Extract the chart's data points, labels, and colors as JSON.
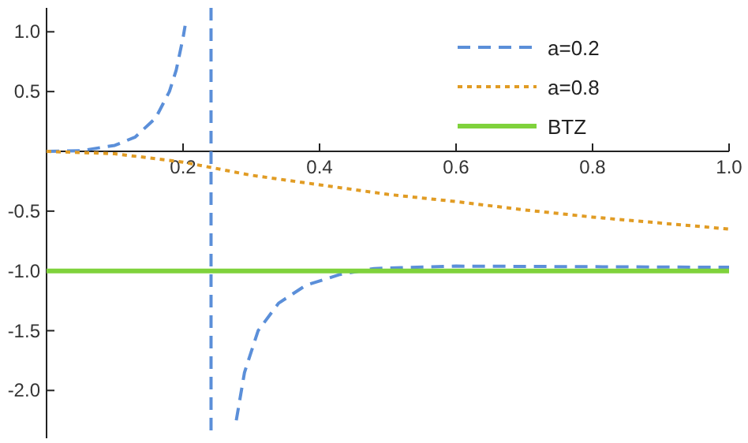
{
  "chart_data": {
    "type": "line",
    "xlim": [
      0,
      1.0
    ],
    "ylim": [
      -2.4,
      1.2
    ],
    "xticks": [
      {
        "value": 0.2,
        "label": "0.2"
      },
      {
        "value": 0.4,
        "label": "0.4"
      },
      {
        "value": 0.6,
        "label": "0.6"
      },
      {
        "value": 0.8,
        "label": "0.8"
      },
      {
        "value": 1.0,
        "label": "1.0"
      }
    ],
    "yticks": [
      {
        "value": 1.0,
        "label": "1.0"
      },
      {
        "value": 0.5,
        "label": "0.5"
      },
      {
        "value": -0.5,
        "label": "-0.5"
      },
      {
        "value": -1.0,
        "label": "-1.0"
      },
      {
        "value": -1.5,
        "label": "-1.5"
      },
      {
        "value": -2.0,
        "label": "-2.0"
      }
    ],
    "legend": "top right",
    "grid": false,
    "series": [
      {
        "name": "a=0.2",
        "color": "#5b8fd9",
        "line_style": "dashed",
        "x": [
          0,
          0.05,
          0.1,
          0.13,
          0.16,
          0.18,
          0.19,
          0.2,
          0.203,
          null,
          0.278,
          0.29,
          0.31,
          0.34,
          0.38,
          0.43,
          0.48,
          0.6,
          0.8,
          1.0
        ],
        "values": [
          0,
          0.005,
          0.05,
          0.12,
          0.28,
          0.5,
          0.68,
          0.95,
          1.05,
          null,
          -2.25,
          -1.85,
          -1.5,
          -1.27,
          -1.12,
          -1.03,
          -0.98,
          -0.96,
          -0.965,
          -0.97
        ]
      },
      {
        "name": "a=0.8",
        "color": "#e19c24",
        "line_style": "dotted",
        "x": [
          0,
          0.1,
          0.2,
          0.3,
          0.4,
          0.5,
          0.6,
          0.7,
          0.8,
          0.9,
          1.0
        ],
        "values": [
          0,
          -0.02,
          -0.09,
          -0.2,
          -0.28,
          -0.36,
          -0.42,
          -0.49,
          -0.55,
          -0.6,
          -0.65
        ]
      },
      {
        "name": "BTZ",
        "color": "#7fd23c",
        "line_style": "solid",
        "x": [
          0,
          1.0
        ],
        "values": [
          -1,
          -1
        ]
      }
    ],
    "ref_lines": [
      {
        "axis": "x",
        "value": 0.241,
        "color": "#5b8fd9",
        "line_style": "dashed"
      }
    ]
  }
}
